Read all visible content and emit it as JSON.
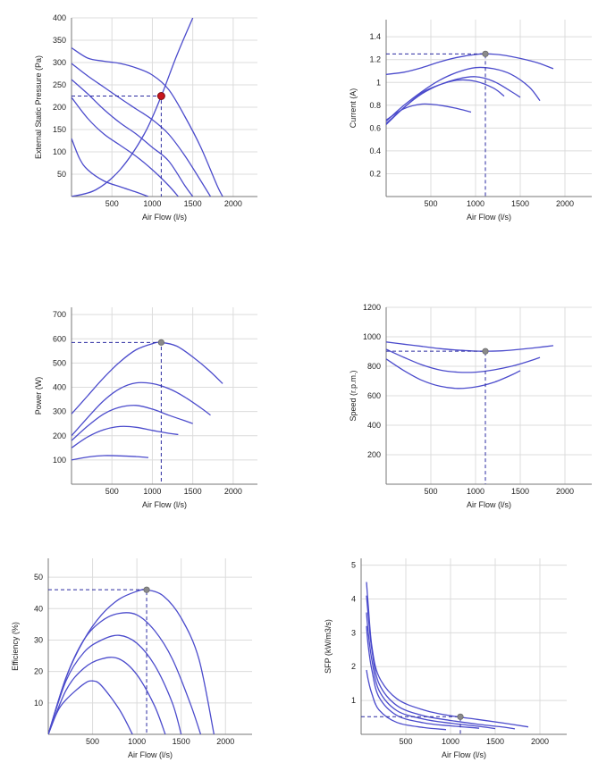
{
  "chart_data": [
    {
      "type": "line",
      "xlabel": "Air Flow (l/s)",
      "ylabel": "External Static Pressure (Pa)",
      "xlim": [
        0,
        2300
      ],
      "ylim": [
        0,
        400
      ],
      "xticks": [
        500,
        1000,
        1500,
        2000
      ],
      "yticks": [
        50,
        100,
        150,
        200,
        250,
        300,
        350,
        400
      ],
      "grid": true,
      "series": [
        {
          "x": [
            0,
            200,
            400,
            600,
            800,
            1000,
            1200,
            1400,
            1600,
            1800,
            1870
          ],
          "y": [
            333,
            310,
            303,
            298,
            288,
            272,
            240,
            180,
            110,
            25,
            0
          ]
        },
        {
          "x": [
            0,
            200,
            400,
            600,
            800,
            1000,
            1200,
            1400,
            1600,
            1720
          ],
          "y": [
            298,
            270,
            245,
            220,
            196,
            172,
            140,
            92,
            35,
            0
          ]
        },
        {
          "x": [
            0,
            200,
            400,
            600,
            800,
            1000,
            1200,
            1400,
            1500
          ],
          "y": [
            262,
            230,
            195,
            165,
            140,
            110,
            80,
            25,
            0
          ]
        },
        {
          "x": [
            0,
            200,
            400,
            600,
            800,
            1000,
            1200,
            1320
          ],
          "y": [
            222,
            175,
            140,
            115,
            90,
            60,
            25,
            0
          ]
        },
        {
          "x": [
            0,
            100,
            200,
            400,
            600,
            800,
            950
          ],
          "y": [
            130,
            85,
            60,
            35,
            22,
            10,
            0
          ]
        },
        {
          "x": [
            0,
            300,
            600,
            900,
            1110,
            1300,
            1500
          ],
          "y": [
            0,
            15,
            60,
            140,
            225,
            315,
            400
          ]
        }
      ],
      "operating_point": {
        "x": 1110,
        "y": 225
      }
    },
    {
      "type": "line",
      "xlabel": "Air Flow (l/s)",
      "ylabel": "Current (A)",
      "xlim": [
        0,
        2300
      ],
      "ylim": [
        0,
        1.55
      ],
      "xticks": [
        500,
        1000,
        1500,
        2000
      ],
      "yticks": [
        0.2,
        0.4,
        0.6,
        0.8,
        1,
        1.2,
        1.4
      ],
      "grid": true,
      "series": [
        {
          "x": [
            0,
            200,
            400,
            600,
            800,
            1000,
            1110,
            1300,
            1500,
            1700,
            1870
          ],
          "y": [
            1.07,
            1.09,
            1.13,
            1.18,
            1.22,
            1.245,
            1.25,
            1.24,
            1.21,
            1.17,
            1.12
          ]
        },
        {
          "x": [
            0,
            200,
            400,
            600,
            800,
            1000,
            1200,
            1400,
            1600,
            1720
          ],
          "y": [
            0.66,
            0.8,
            0.92,
            1.02,
            1.09,
            1.13,
            1.12,
            1.07,
            0.96,
            0.84
          ]
        },
        {
          "x": [
            0,
            200,
            400,
            600,
            800,
            1000,
            1200,
            1400,
            1500
          ],
          "y": [
            0.63,
            0.78,
            0.9,
            0.98,
            1.03,
            1.05,
            1.01,
            0.92,
            0.87
          ]
        },
        {
          "x": [
            0,
            200,
            400,
            600,
            800,
            1000,
            1200,
            1320
          ],
          "y": [
            0.64,
            0.78,
            0.91,
            0.98,
            1.02,
            1.01,
            0.95,
            0.88
          ]
        },
        {
          "x": [
            0,
            200,
            400,
            600,
            800,
            950
          ],
          "y": [
            0.67,
            0.77,
            0.81,
            0.8,
            0.77,
            0.74
          ]
        }
      ],
      "operating_point": {
        "x": 1110,
        "y": 1.25
      }
    },
    {
      "type": "line",
      "xlabel": "Air Flow (l/s)",
      "ylabel": "Power (W)",
      "xlim": [
        0,
        2300
      ],
      "ylim": [
        0,
        730
      ],
      "xticks": [
        500,
        1000,
        1500,
        2000
      ],
      "yticks": [
        100,
        200,
        300,
        400,
        500,
        600,
        700
      ],
      "grid": true,
      "series": [
        {
          "x": [
            0,
            200,
            400,
            600,
            800,
            1000,
            1110,
            1300,
            1500,
            1700,
            1870
          ],
          "y": [
            290,
            365,
            440,
            505,
            555,
            580,
            585,
            570,
            525,
            470,
            415
          ]
        },
        {
          "x": [
            0,
            200,
            400,
            600,
            800,
            1000,
            1200,
            1400,
            1600,
            1720
          ],
          "y": [
            200,
            275,
            345,
            395,
            418,
            415,
            395,
            360,
            315,
            285
          ]
        },
        {
          "x": [
            0,
            200,
            400,
            600,
            800,
            1000,
            1200,
            1400,
            1500
          ],
          "y": [
            180,
            240,
            290,
            318,
            325,
            310,
            285,
            262,
            250
          ]
        },
        {
          "x": [
            0,
            200,
            400,
            600,
            800,
            1000,
            1200,
            1320
          ],
          "y": [
            150,
            195,
            225,
            238,
            235,
            222,
            210,
            205
          ]
        },
        {
          "x": [
            0,
            200,
            400,
            600,
            800,
            950
          ],
          "y": [
            100,
            112,
            118,
            117,
            114,
            110
          ]
        }
      ],
      "operating_point": {
        "x": 1110,
        "y": 585
      }
    },
    {
      "type": "line",
      "xlabel": "Air Flow (l/s)",
      "ylabel": "Speed (r.p.m.)",
      "xlim": [
        0,
        2300
      ],
      "ylim": [
        0,
        1200
      ],
      "xticks": [
        500,
        1000,
        1500,
        2000
      ],
      "yticks": [
        200,
        400,
        600,
        800,
        1000,
        1200
      ],
      "grid": true,
      "series": [
        {
          "x": [
            0,
            200,
            400,
            600,
            800,
            1000,
            1110,
            1300,
            1500,
            1700,
            1870
          ],
          "y": [
            965,
            950,
            935,
            920,
            910,
            903,
            902,
            905,
            915,
            928,
            940
          ]
        },
        {
          "x": [
            0,
            200,
            400,
            600,
            800,
            1000,
            1200,
            1400,
            1600,
            1720
          ],
          "y": [
            915,
            860,
            810,
            775,
            760,
            760,
            775,
            800,
            835,
            860
          ]
        },
        {
          "x": [
            0,
            200,
            400,
            600,
            800,
            1000,
            1200,
            1400,
            1500
          ],
          "y": [
            850,
            770,
            705,
            665,
            650,
            660,
            690,
            740,
            770
          ]
        }
      ],
      "operating_point": {
        "x": 1110,
        "y": 902
      }
    },
    {
      "type": "line",
      "xlabel": "Air Flow (l/s)",
      "ylabel": "Efficiency (%)",
      "xlim": [
        0,
        2300
      ],
      "ylim": [
        0,
        56
      ],
      "xticks": [
        500,
        1000,
        1500,
        2000
      ],
      "yticks": [
        10,
        20,
        30,
        40,
        50
      ],
      "grid": true,
      "series": [
        {
          "x": [
            0,
            200,
            400,
            600,
            800,
            1000,
            1110,
            1300,
            1500,
            1700,
            1870
          ],
          "y": [
            0,
            18,
            30,
            38,
            43,
            45.5,
            46,
            44,
            37,
            24,
            0
          ]
        },
        {
          "x": [
            0,
            200,
            400,
            600,
            800,
            1000,
            1200,
            1400,
            1600,
            1720
          ],
          "y": [
            0,
            18,
            30,
            36,
            38.5,
            38,
            33,
            24,
            10,
            0
          ]
        },
        {
          "x": [
            0,
            200,
            400,
            600,
            800,
            1000,
            1200,
            1400,
            1500
          ],
          "y": [
            0,
            17,
            26,
            30,
            31.5,
            29,
            22,
            10,
            0
          ]
        },
        {
          "x": [
            0,
            200,
            400,
            600,
            800,
            1000,
            1200,
            1320
          ],
          "y": [
            0,
            14,
            21,
            24,
            24,
            19,
            9,
            0
          ]
        },
        {
          "x": [
            0,
            100,
            200,
            400,
            500,
            600,
            800,
            950
          ],
          "y": [
            0,
            7,
            11,
            16,
            17,
            15.5,
            8,
            0
          ]
        }
      ],
      "operating_point": {
        "x": 1110,
        "y": 46
      }
    },
    {
      "type": "line",
      "xlabel": "Air Flow (l/s)",
      "ylabel": "SFP (kW/m3/s)",
      "xlim": [
        0,
        2300
      ],
      "ylim": [
        0,
        5.2
      ],
      "xticks": [
        500,
        1000,
        1500,
        2000
      ],
      "yticks": [
        1,
        2,
        3,
        4,
        5
      ],
      "grid": true,
      "series": [
        {
          "x": [
            60,
            80,
            120,
            200,
            400,
            700,
            1000,
            1300,
            1600,
            1870
          ],
          "y": [
            4.5,
            3.8,
            2.6,
            1.7,
            1.05,
            0.72,
            0.55,
            0.44,
            0.33,
            0.22
          ]
        },
        {
          "x": [
            60,
            80,
            120,
            200,
            400,
            700,
            1000,
            1300,
            1600,
            1720
          ],
          "y": [
            4.1,
            3.5,
            2.5,
            1.5,
            0.85,
            0.55,
            0.41,
            0.3,
            0.21,
            0.16
          ]
        },
        {
          "x": [
            60,
            80,
            120,
            200,
            400,
            700,
            1000,
            1300,
            1500
          ],
          "y": [
            3.6,
            3.0,
            2.2,
            1.3,
            0.7,
            0.45,
            0.33,
            0.24,
            0.17
          ]
        },
        {
          "x": [
            60,
            80,
            120,
            200,
            400,
            700,
            1000,
            1320
          ],
          "y": [
            3.2,
            2.6,
            1.9,
            1.1,
            0.56,
            0.34,
            0.25,
            0.18
          ]
        },
        {
          "x": [
            60,
            80,
            120,
            200,
            400,
            700,
            950
          ],
          "y": [
            1.9,
            1.6,
            1.2,
            0.72,
            0.35,
            0.2,
            0.14
          ]
        }
      ],
      "operating_point": {
        "x": 1110,
        "y": 0.52
      }
    }
  ],
  "colors": {
    "curve": "#4b4bcc",
    "guide": "#2a2aa0",
    "marker_primary": "#c8161d",
    "marker_secondary": "#8a8a8a"
  }
}
